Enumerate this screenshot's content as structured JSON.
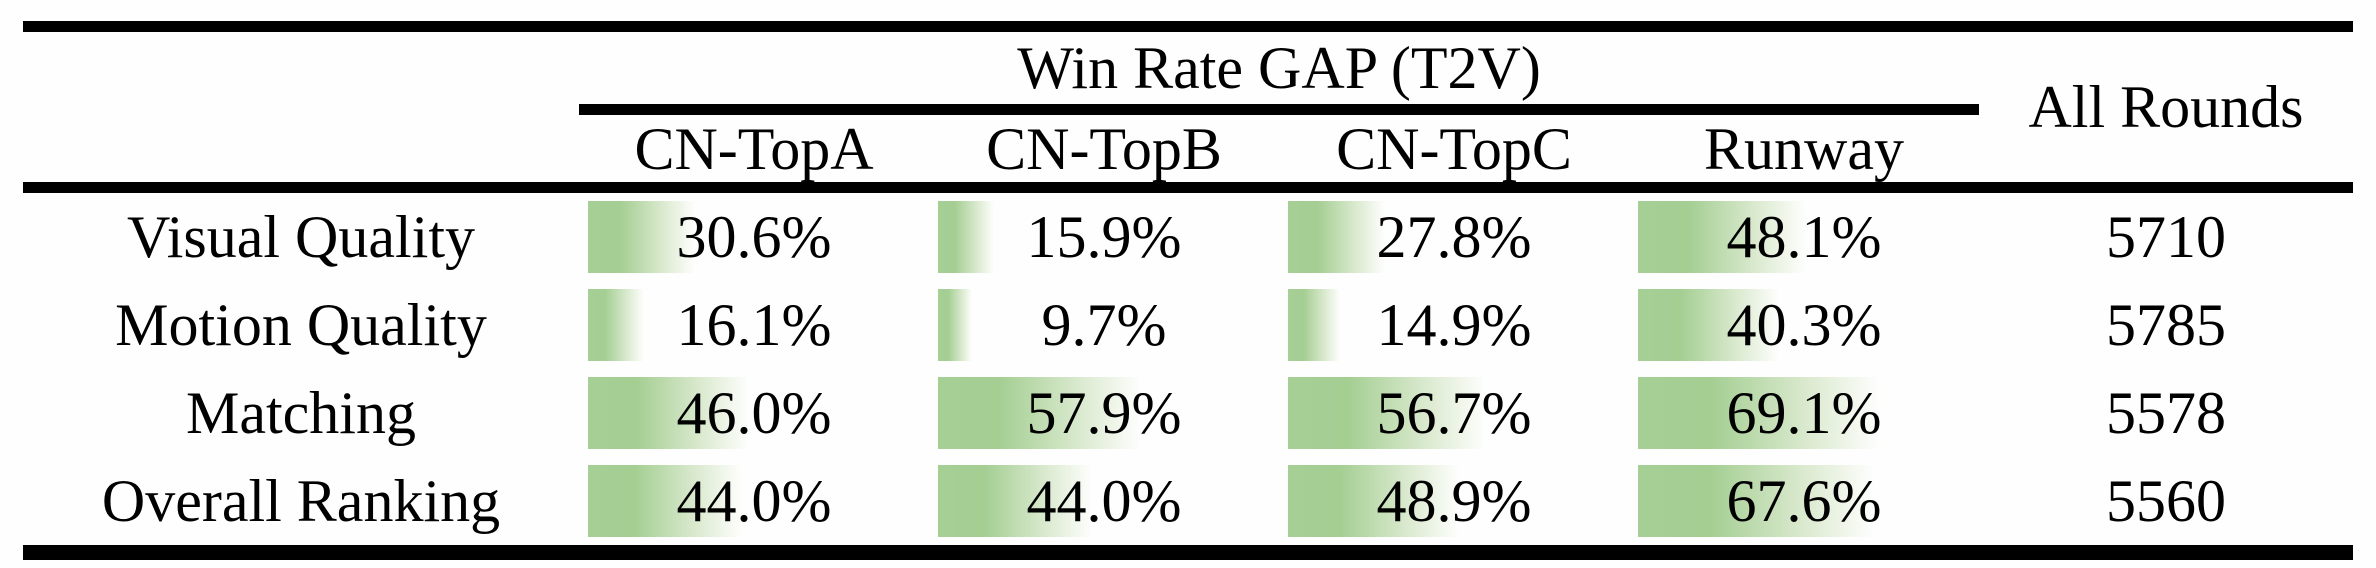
{
  "table": {
    "group_header": "Win Rate GAP (T2V)",
    "all_rounds_header": "All Rounds",
    "columns": [
      "CN-TopA",
      "CN-TopB",
      "CN-TopC",
      "Runway"
    ],
    "bar_color": "#a5cf95",
    "rows": [
      {
        "label": "Visual Quality",
        "gaps": [
          {
            "value": 30.6,
            "text": "30.6%"
          },
          {
            "value": 15.9,
            "text": "15.9%"
          },
          {
            "value": 27.8,
            "text": "27.8%"
          },
          {
            "value": 48.1,
            "text": "48.1%"
          }
        ],
        "all_rounds": "5710"
      },
      {
        "label": "Motion Quality",
        "gaps": [
          {
            "value": 16.1,
            "text": "16.1%"
          },
          {
            "value": 9.7,
            "text": "9.7%"
          },
          {
            "value": 14.9,
            "text": "14.9%"
          },
          {
            "value": 40.3,
            "text": "40.3%"
          }
        ],
        "all_rounds": "5785"
      },
      {
        "label": "Matching",
        "gaps": [
          {
            "value": 46.0,
            "text": "46.0%"
          },
          {
            "value": 57.9,
            "text": "57.9%"
          },
          {
            "value": 56.7,
            "text": "56.7%"
          },
          {
            "value": 69.1,
            "text": "69.1%"
          }
        ],
        "all_rounds": "5578"
      },
      {
        "label": "Overall Ranking",
        "gaps": [
          {
            "value": 44.0,
            "text": "44.0%"
          },
          {
            "value": 44.0,
            "text": "44.0%"
          },
          {
            "value": 48.9,
            "text": "48.9%"
          },
          {
            "value": 67.6,
            "text": "67.6%"
          }
        ],
        "all_rounds": "5560"
      }
    ]
  }
}
